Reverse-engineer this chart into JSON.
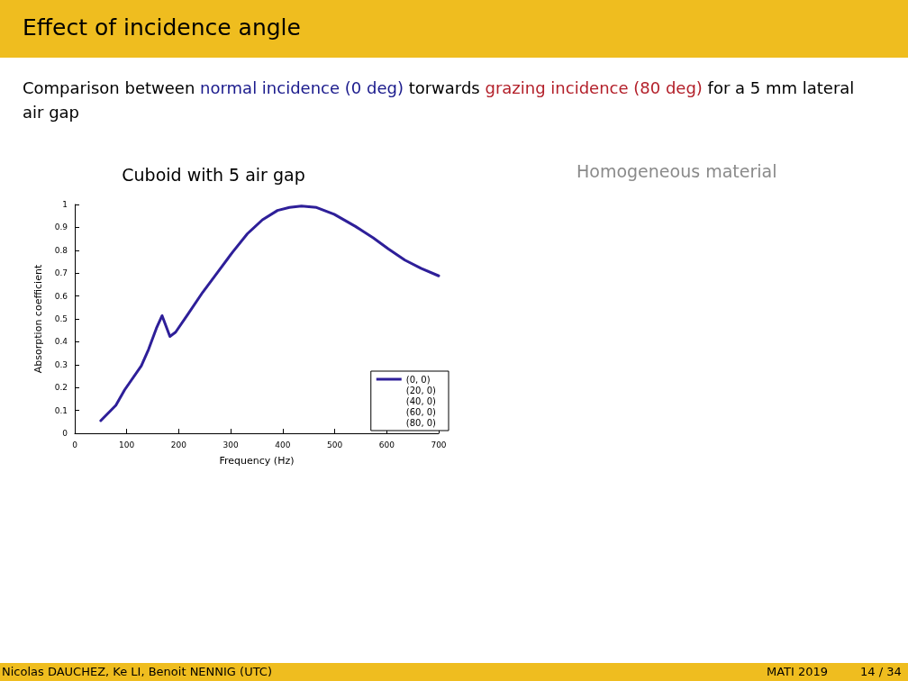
{
  "chart_data": {
    "type": "line",
    "title": "Cuboid with 5 air gap",
    "xlabel": "Frequency (Hz)",
    "ylabel": "Absorption coefficient",
    "x": [
      50,
      79,
      96,
      128,
      142,
      157,
      168,
      183,
      194,
      217,
      246,
      275,
      304,
      332,
      361,
      390,
      413,
      436,
      465,
      499,
      540,
      574,
      603,
      635,
      666,
      700
    ],
    "series": [
      {
        "name": "(0, 0)",
        "color": "#2e1f99",
        "values": [
          0.055,
          0.122,
          0.19,
          0.295,
          0.367,
          0.459,
          0.514,
          0.423,
          0.442,
          0.518,
          0.616,
          0.704,
          0.793,
          0.872,
          0.933,
          0.974,
          0.987,
          0.993,
          0.987,
          0.957,
          0.904,
          0.854,
          0.806,
          0.757,
          0.721,
          0.688
        ]
      },
      {
        "name": "(20, 0)",
        "values": [
          null,
          null,
          null,
          null,
          null,
          null,
          null,
          null,
          null,
          null,
          null,
          null,
          null,
          null,
          null,
          null,
          null,
          null,
          null,
          null,
          null,
          null,
          null,
          null,
          null,
          null
        ]
      },
      {
        "name": "(40, 0)",
        "values": [
          null,
          null,
          null,
          null,
          null,
          null,
          null,
          null,
          null,
          null,
          null,
          null,
          null,
          null,
          null,
          null,
          null,
          null,
          null,
          null,
          null,
          null,
          null,
          null,
          null,
          null
        ]
      },
      {
        "name": "(60, 0)",
        "values": [
          null,
          null,
          null,
          null,
          null,
          null,
          null,
          null,
          null,
          null,
          null,
          null,
          null,
          null,
          null,
          null,
          null,
          null,
          null,
          null,
          null,
          null,
          null,
          null,
          null,
          null
        ]
      },
      {
        "name": "(80, 0)",
        "values": [
          null,
          null,
          null,
          null,
          null,
          null,
          null,
          null,
          null,
          null,
          null,
          null,
          null,
          null,
          null,
          null,
          null,
          null,
          null,
          null,
          null,
          null,
          null,
          null,
          null,
          null
        ]
      }
    ],
    "xlim": [
      0,
      700
    ],
    "xticks": [
      0,
      100,
      200,
      300,
      400,
      500,
      600,
      700
    ],
    "ylim": [
      0,
      1
    ],
    "yticks": [
      0,
      0.1,
      0.2,
      0.3,
      0.4,
      0.5,
      0.6,
      0.7,
      0.8,
      0.9,
      1
    ],
    "grid": false,
    "legend": "bottom right",
    "marker": "none",
    "line_style": "solid",
    "annotations": [
      "Effect of incidence angle",
      "Comparison between ",
      "normal incidence (0 deg)",
      " torwards ",
      "grazing incidence (80 deg)",
      " for a 5 mm lateral air gap",
      "Homogeneous material",
      "Nicolas DAUCHEZ, Ke LI, Benoit NENNIG (UTC)",
      "MATI 2019",
      "14 / 34"
    ]
  }
}
